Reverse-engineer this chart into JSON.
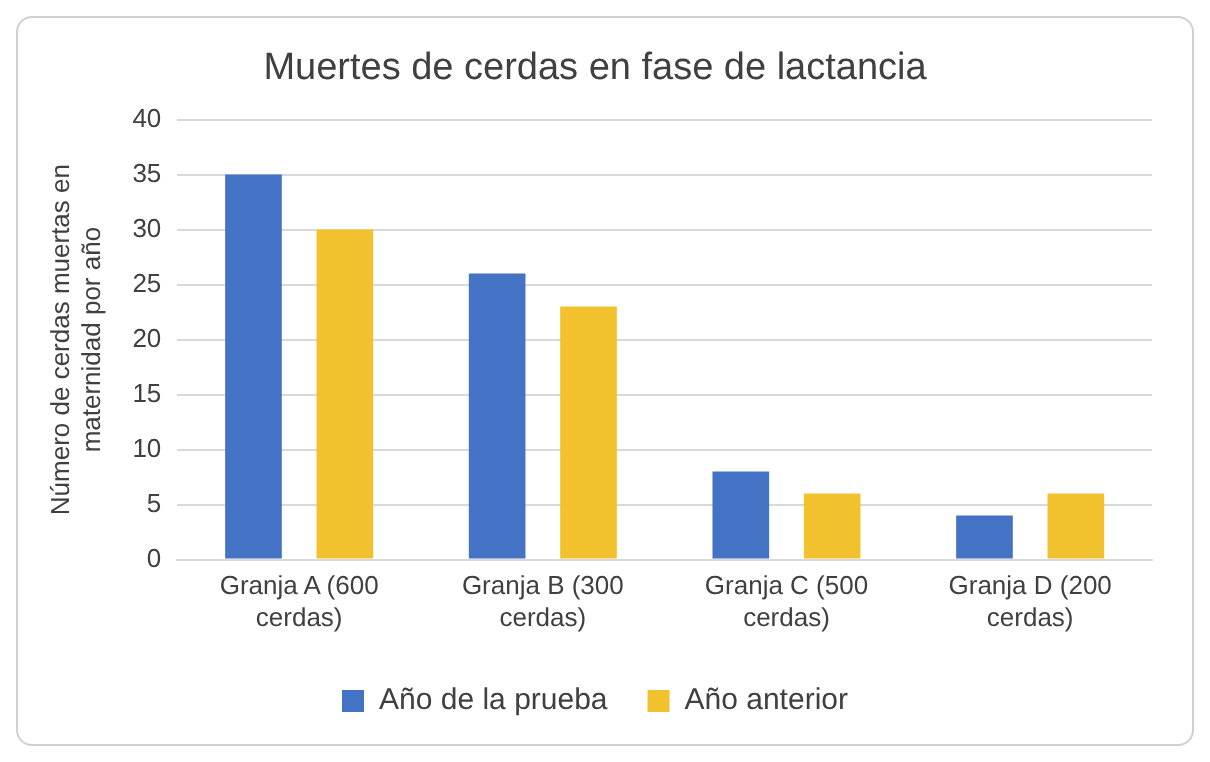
{
  "chart_data": {
    "type": "bar",
    "title": "Muertes de cerdas en fase de lactancia",
    "ylabel": "Número de cerdas muertas en maternidad por año",
    "categories": [
      "Granja A (600 cerdas)",
      "Granja B (300 cerdas)",
      "Granja C (500 cerdas)",
      "Granja D (200 cerdas)"
    ],
    "series": [
      {
        "name": "Año de la prueba",
        "color": "#4472c4",
        "values": [
          35,
          26,
          8,
          4
        ]
      },
      {
        "name": "Año anterior",
        "color": "#f2c12e",
        "values": [
          30,
          23,
          6,
          6
        ]
      }
    ],
    "ylim": [
      0,
      40
    ],
    "yticks": [
      0,
      5,
      10,
      15,
      20,
      25,
      30,
      35,
      40
    ],
    "grid": "y",
    "legend": "bottom"
  }
}
